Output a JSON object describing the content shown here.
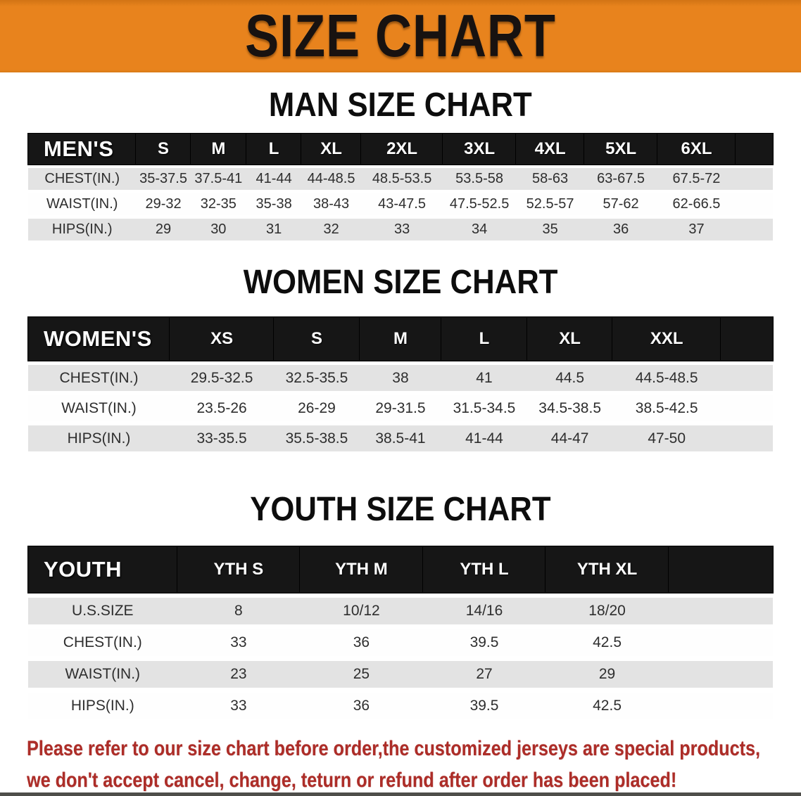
{
  "banner": {
    "title": "SIZE CHART",
    "bg_color": "#e8831d",
    "text_color": "#181210"
  },
  "sections": {
    "men": {
      "heading": "MAN SIZE CHART",
      "table": {
        "label": "MEN'S",
        "columns": [
          "S",
          "M",
          "L",
          "XL",
          "2XL",
          "3XL",
          "4XL",
          "5XL",
          "6XL"
        ],
        "rows": [
          {
            "label": "CHEST(IN.)",
            "values": [
              "35-37.5",
              "37.5-41",
              "41-44",
              "44-48.5",
              "48.5-53.5",
              "53.5-58",
              "58-63",
              "63-67.5",
              "67.5-72"
            ]
          },
          {
            "label": "WAIST(IN.)",
            "values": [
              "29-32",
              "32-35",
              "35-38",
              "38-43",
              "43-47.5",
              "47.5-52.5",
              "52.5-57",
              "57-62",
              "62-66.5"
            ]
          },
          {
            "label": "HIPS(IN.)",
            "values": [
              "29",
              "30",
              "31",
              "32",
              "33",
              "34",
              "35",
              "36",
              "37"
            ]
          }
        ]
      }
    },
    "women": {
      "heading": "WOMEN SIZE CHART",
      "table": {
        "label": "WOMEN'S",
        "columns": [
          "XS",
          "S",
          "M",
          "L",
          "XL",
          "XXL"
        ],
        "rows": [
          {
            "label": "CHEST(IN.)",
            "values": [
              "29.5-32.5",
              "32.5-35.5",
              "38",
              "41",
              "44.5",
              "44.5-48.5"
            ]
          },
          {
            "label": "WAIST(IN.)",
            "values": [
              "23.5-26",
              "26-29",
              "29-31.5",
              "31.5-34.5",
              "34.5-38.5",
              "38.5-42.5"
            ]
          },
          {
            "label": "HIPS(IN.)",
            "values": [
              "33-35.5",
              "35.5-38.5",
              "38.5-41",
              "41-44",
              "44-47",
              "47-50"
            ]
          }
        ]
      }
    },
    "youth": {
      "heading": "YOUTH SIZE CHART",
      "table": {
        "label": "YOUTH",
        "columns": [
          "YTH S",
          "YTH M",
          "YTH L",
          "YTH XL"
        ],
        "rows": [
          {
            "label": "U.S.SIZE",
            "values": [
              "8",
              "10/12",
              "14/16",
              "18/20"
            ]
          },
          {
            "label": "CHEST(IN.)",
            "values": [
              "33",
              "36",
              "39.5",
              "42.5"
            ]
          },
          {
            "label": "WAIST(IN.)",
            "values": [
              "23",
              "25",
              "27",
              "29"
            ]
          },
          {
            "label": "HIPS(IN.)",
            "values": [
              "33",
              "36",
              "39.5",
              "42.5"
            ]
          }
        ]
      }
    }
  },
  "disclaimer": {
    "line1": "Please refer to our size chart before order,the customized jerseys are special products,",
    "line2": "we don't accept cancel, change, teturn or refund after order has been placed!",
    "color": "#ad2d28"
  },
  "colors": {
    "banner_orange": "#e8831d",
    "table_header_black": "#161616",
    "row_gray": "#e3e3e3",
    "row_white": "#fefefe",
    "disclaimer_red": "#ad2d28"
  }
}
